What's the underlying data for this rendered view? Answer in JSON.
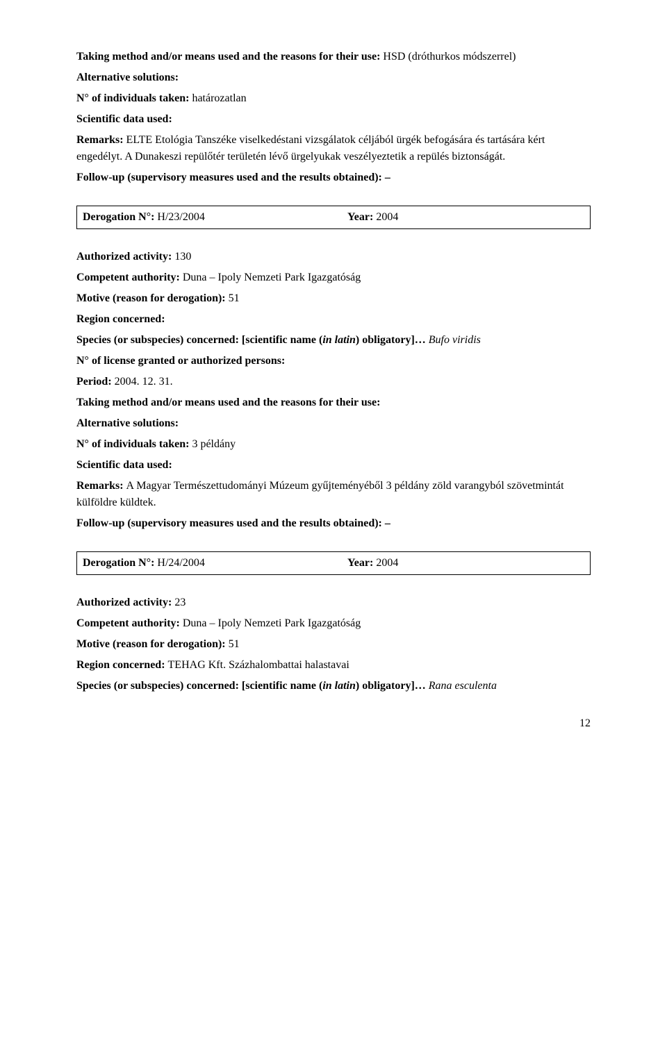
{
  "p1": {
    "takingLabel": "Taking method and/or means used and the reasons for their use: ",
    "takingValue": "HSD (dróthurkos módszerrel)",
    "altLabel": "Alternative solutions:",
    "indivLabel": "N° of individuals taken: ",
    "indivValue": "határozatlan",
    "sciLabel": "Scientific data used:",
    "remarksLabel": "Remarks: ",
    "remarksValue": "ELTE Etológia Tanszéke viselkedéstani vizsgálatok céljából ürgék befogására és tartására kért engedélyt. A Dunakeszi repülőtér területén lévő ürgelyukak veszélyeztetik a repülés biztonságát.",
    "followLabel": "Follow-up (supervisory measures used and the results obtained): –"
  },
  "box1": {
    "derogLabel": "Derogation N°: ",
    "derogValue": "H/23/2004",
    "yearLabel": "Year: ",
    "yearValue": "2004"
  },
  "p2": {
    "authLabel": "Authorized activity: ",
    "authValue": "130",
    "compLabel": "Competent authority: ",
    "compValue": "Duna – Ipoly Nemzeti Park Igazgatóság",
    "motiveLabel": "Motive (reason for derogation): ",
    "motiveValue": "51",
    "regionLabel": "Region concerned:",
    "speciesLabel1": "Species (or subspecies) concerned: [scientific name (",
    "speciesLabel2": "in latin",
    "speciesLabel3": ") obligatory]… ",
    "speciesValue": "Bufo viridis",
    "licenseLabel": "N° of license granted or authorized persons:",
    "periodLabel": "Period: ",
    "periodValue": "2004. 12. 31.",
    "takingLabel": "Taking method and/or means used and the reasons for their use:",
    "altLabel": "Alternative solutions:",
    "indivLabel": "N° of individuals taken: ",
    "indivValue": "3 példány",
    "sciLabel": "Scientific data used:",
    "remarksLabel": "Remarks: ",
    "remarksValue": "A Magyar Természettudományi Múzeum gyűjteményéből 3 példány zöld varangyból szövetmintát külföldre küldtek.",
    "followLabel": "Follow-up (supervisory measures used and the results obtained): –"
  },
  "box2": {
    "derogLabel": "Derogation N°: ",
    "derogValue": "H/24/2004",
    "yearLabel": "Year: ",
    "yearValue": "2004"
  },
  "p3": {
    "authLabel": "Authorized activity: ",
    "authValue": "23",
    "compLabel": "Competent authority: ",
    "compValue": "Duna – Ipoly Nemzeti Park Igazgatóság",
    "motiveLabel": "Motive (reason for derogation): ",
    "motiveValue": "51",
    "regionLabel": "Region concerned: ",
    "regionValue": "TEHAG Kft. Százhalombattai halastavai",
    "speciesLabel1": "Species (or subspecies) concerned: [scientific name (",
    "speciesLabel2": "in latin",
    "speciesLabel3": ") obligatory]… ",
    "speciesValue": "Rana esculenta"
  },
  "pageNumber": "12"
}
